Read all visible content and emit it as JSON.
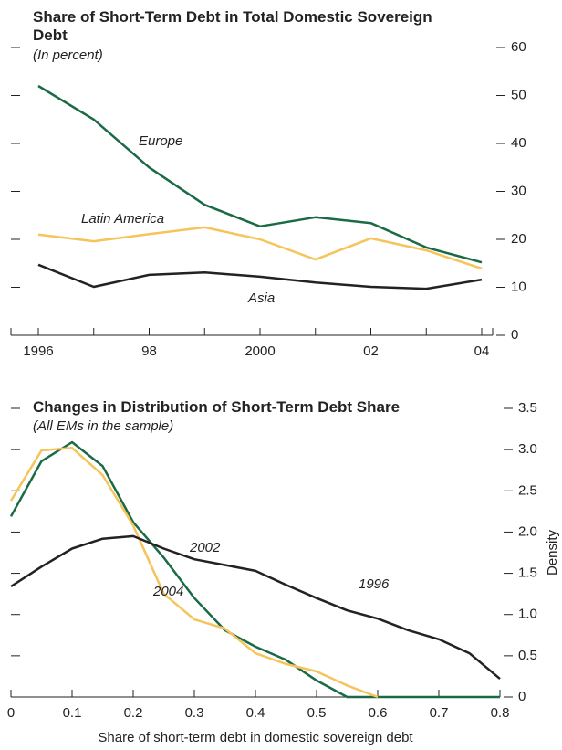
{
  "chart_data": [
    {
      "type": "line",
      "title": "Share of Short-Term Debt in Total Domestic Sovereign Debt",
      "subtitle": "(In percent)",
      "categories": [
        "1996",
        null,
        "98",
        null,
        "2000",
        null,
        "02",
        null,
        "04"
      ],
      "ylim": [
        0,
        60
      ],
      "yticks": [
        0,
        10,
        20,
        30,
        40,
        50,
        60
      ],
      "series": [
        {
          "name": "Europe",
          "color": "#1a6b45",
          "values": [
            52,
            45,
            35,
            27.2,
            22.7,
            24.6,
            23.4,
            18.3,
            15.2
          ]
        },
        {
          "name": "Latin America",
          "color": "#f5c45a",
          "values": [
            21,
            19.6,
            21.1,
            22.5,
            20,
            15.8,
            20.2,
            17.7,
            13.9
          ]
        },
        {
          "name": "Asia",
          "color": "#222222",
          "values": [
            14.7,
            10.1,
            12.6,
            13.1,
            12.2,
            11,
            10.1,
            9.7,
            11.6
          ]
        }
      ]
    },
    {
      "type": "line",
      "title": "Changes in Distribution of Short-Term Debt Share",
      "subtitle": "(All EMs in the sample)",
      "x_label": "Share of short-term debt in domestic sovereign debt",
      "y_label": "Density",
      "x": [
        0,
        0.05,
        0.1,
        0.15,
        0.2,
        0.25,
        0.3,
        0.35,
        0.4,
        0.45,
        0.5,
        0.55,
        0.6,
        0.65,
        0.7,
        0.75,
        0.8
      ],
      "xlim": [
        0,
        0.8
      ],
      "xticks": [
        0,
        0.1,
        0.2,
        0.3,
        0.4,
        0.5,
        0.6,
        0.7,
        0.8
      ],
      "ylim": [
        0,
        3.5
      ],
      "yticks": [
        0,
        0.5,
        {
          "value": 1,
          "label": "1.0"
        },
        1.5,
        {
          "value": 2,
          "label": "2.0"
        },
        2.5,
        {
          "value": 3,
          "label": "3.0"
        },
        3.5
      ],
      "series": [
        {
          "name": "2002",
          "color": "#1a6b45",
          "values": [
            2.19,
            2.86,
            3.09,
            2.8,
            2.12,
            1.69,
            1.2,
            0.81,
            0.61,
            0.45,
            0.2,
            0,
            0,
            0,
            0,
            0,
            0
          ]
        },
        {
          "name": "2004",
          "color": "#f5c45a",
          "values": [
            2.38,
            2.99,
            3.02,
            2.69,
            2.08,
            1.25,
            0.94,
            0.83,
            0.53,
            0.4,
            0.31,
            0.14,
            0,
            null,
            null,
            null,
            null
          ]
        },
        {
          "name": "1996",
          "color": "#222222",
          "values": [
            1.34,
            1.58,
            1.8,
            1.92,
            1.95,
            1.8,
            1.67,
            1.6,
            1.53,
            1.36,
            1.2,
            1.05,
            0.95,
            0.81,
            0.7,
            0.53,
            0.22
          ]
        }
      ]
    }
  ]
}
